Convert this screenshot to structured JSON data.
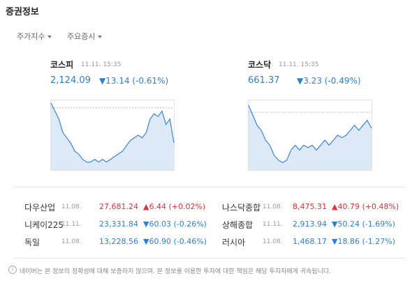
{
  "header": {
    "title": "증권정보"
  },
  "tabs": [
    "주가지수",
    "주요증시"
  ],
  "chart_data": [
    {
      "type": "line",
      "title": "코스피",
      "date": "11.11. 15:35",
      "value": "2,124.09",
      "change": "▼13.14 (-0.61%)",
      "color": "#3a86d6",
      "ylim": [
        2114,
        2140
      ],
      "baseline": 2137.23,
      "values": [
        2139,
        2136,
        2133,
        2128,
        2126,
        2124,
        2121,
        2120,
        2118,
        2117,
        2117,
        2118,
        2117,
        2118,
        2117,
        2118,
        2119,
        2120,
        2121,
        2123,
        2125,
        2126,
        2127,
        2126,
        2128,
        2133,
        2135,
        2134,
        2136,
        2131,
        2133,
        2124.09
      ]
    },
    {
      "type": "line",
      "title": "코스닥",
      "date": "11.11. 15:35",
      "value": "661.37",
      "change": "▼3.23 (-0.49%)",
      "color": "#3a86d6",
      "ylim": [
        653,
        667
      ],
      "baseline": 664.6,
      "values": [
        666,
        664,
        662,
        661,
        659,
        658,
        656,
        655,
        654.5,
        655,
        657,
        658,
        657,
        658,
        657.5,
        658,
        657,
        658,
        659,
        658,
        659,
        660,
        659.5,
        660,
        661,
        662,
        661,
        662,
        663,
        661.37
      ]
    }
  ],
  "table": {
    "rows": [
      [
        {
          "name": "다우산업",
          "date": "11.08.",
          "value": "27,681.24",
          "change": "▲6.44 (+0.02%)",
          "direction": "up"
        },
        {
          "name": "나스닥종합",
          "date": "11.08.",
          "value": "8,475.31",
          "change": "▲40.79 (+0.48%)",
          "direction": "up"
        }
      ],
      [
        {
          "name": "니케이225",
          "date": "11.11.",
          "value": "23,331.84",
          "change": "▼60.03 (-0.26%)",
          "direction": "down"
        },
        {
          "name": "상해종합",
          "date": "11.11.",
          "value": "2,913.94",
          "change": "▼50.24 (-1.69%)",
          "direction": "down"
        }
      ],
      [
        {
          "name": "독일",
          "date": "11.08.",
          "value": "13,228.56",
          "change": "▼60.90 (-0.46%)",
          "direction": "down"
        },
        {
          "name": "러시아",
          "date": "11.08.",
          "value": "1,468.17",
          "change": "▼18.86 (-1.27%)",
          "direction": "down"
        }
      ]
    ]
  },
  "footer": {
    "notice": "네이버는 본 정보의 정확성에 대해 보증하지 않으며. 본 정보를 이용한 투자에 대한 책임은 해당 투자자에게 귀속됩니다."
  }
}
